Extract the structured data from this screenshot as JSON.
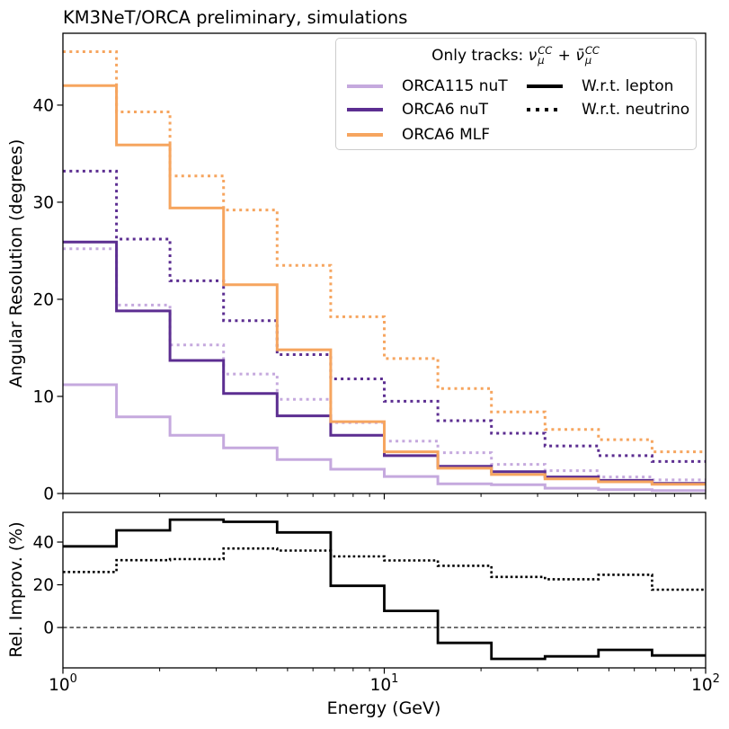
{
  "title": "KM3NeT/ORCA preliminary, simulations",
  "legend": {
    "title_prefix": "Only tracks: ",
    "math": {
      "nu": "ν",
      "nubar": "ν̄",
      "sup": "CC",
      "sub": "μ",
      "plus": " + "
    },
    "entries": [
      {
        "label": "ORCA115 nuT",
        "color": "#c5a9de",
        "style": "solid"
      },
      {
        "label": "ORCA6 nuT",
        "color": "#5c2e91",
        "style": "solid"
      },
      {
        "label": "ORCA6 MLF",
        "color": "#f6a55f",
        "style": "solid"
      },
      {
        "label": "W.r.t. lepton",
        "color": "#000000",
        "style": "solid"
      },
      {
        "label": "W.r.t. neutrino",
        "color": "#000000",
        "style": "dotted"
      }
    ]
  },
  "chart_data": {
    "type": "step-histogram",
    "x": {
      "label": "Energy (GeV)",
      "scale": "log",
      "lim": [
        1,
        100
      ],
      "bin_edges": [
        1,
        1.468,
        2.154,
        3.162,
        4.642,
        6.813,
        10,
        14.678,
        21.544,
        31.623,
        46.416,
        68.129,
        100
      ],
      "major_tick_values": [
        1,
        10,
        100
      ],
      "major_ticks": [
        {
          "base": "10",
          "exp": "0"
        },
        {
          "base": "10",
          "exp": "1"
        },
        {
          "base": "10",
          "exp": "2"
        }
      ],
      "minor_tick_values": [
        2,
        3,
        4,
        5,
        6,
        7,
        8,
        9,
        20,
        30,
        40,
        50,
        60,
        70,
        80,
        90
      ]
    },
    "top_panel": {
      "ylabel": "Angular Resolution (degrees)",
      "ylim": [
        0,
        47.4
      ],
      "yticks": [
        0,
        10,
        20,
        30,
        40
      ],
      "series": [
        {
          "name": "ORCA115 nuT w.r.t. lepton",
          "color": "#c5a9de",
          "style": "solid",
          "values": [
            11.2,
            7.9,
            6.0,
            4.7,
            3.5,
            2.5,
            1.75,
            1.0,
            0.9,
            0.55,
            0.4,
            0.3
          ]
        },
        {
          "name": "ORCA115 nuT w.r.t. neutrino",
          "color": "#c5a9de",
          "style": "dotted",
          "values": [
            25.2,
            19.4,
            15.3,
            12.3,
            9.7,
            7.3,
            5.4,
            4.2,
            3.0,
            2.35,
            1.7,
            1.4
          ]
        },
        {
          "name": "ORCA6 nuT w.r.t. lepton",
          "color": "#5c2e91",
          "style": "solid",
          "values": [
            25.9,
            18.8,
            13.7,
            10.3,
            8.0,
            6.0,
            3.9,
            2.8,
            2.25,
            1.7,
            1.35,
            1.05
          ]
        },
        {
          "name": "ORCA6 nuT w.r.t. neutrino",
          "color": "#5c2e91",
          "style": "dotted",
          "values": [
            33.2,
            26.2,
            21.9,
            17.8,
            14.3,
            11.8,
            9.5,
            7.5,
            6.2,
            4.9,
            3.9,
            3.3
          ]
        },
        {
          "name": "ORCA6 MLF w.r.t. lepton",
          "color": "#f6a55f",
          "style": "solid",
          "values": [
            42.0,
            35.9,
            29.4,
            21.5,
            14.8,
            7.4,
            4.3,
            2.6,
            1.95,
            1.5,
            1.2,
            0.95
          ]
        },
        {
          "name": "ORCA6 MLF w.r.t. neutrino",
          "color": "#f6a55f",
          "style": "dotted",
          "values": [
            45.5,
            39.3,
            32.7,
            29.2,
            23.5,
            18.2,
            13.9,
            10.8,
            8.4,
            6.6,
            5.55,
            4.3
          ]
        }
      ]
    },
    "bottom_panel": {
      "ylabel": "Rel. Improv. (%)",
      "ylim": [
        -18.9,
        53.9
      ],
      "yticks": [
        0,
        20,
        40
      ],
      "zero_line": true,
      "series": [
        {
          "name": "Rel. improvement w.r.t. lepton",
          "color": "#000000",
          "style": "solid",
          "values": [
            38,
            45.5,
            50.5,
            49.5,
            44.5,
            19.5,
            7.8,
            -7.2,
            -14.7,
            -13.5,
            -10.5,
            -13.1
          ]
        },
        {
          "name": "Rel. improvement w.r.t. neutrino",
          "color": "#000000",
          "style": "dotted",
          "values": [
            26,
            31.5,
            32,
            37,
            36,
            33.3,
            31.4,
            28.9,
            23.7,
            22.6,
            24.7,
            17.7
          ]
        }
      ]
    }
  }
}
